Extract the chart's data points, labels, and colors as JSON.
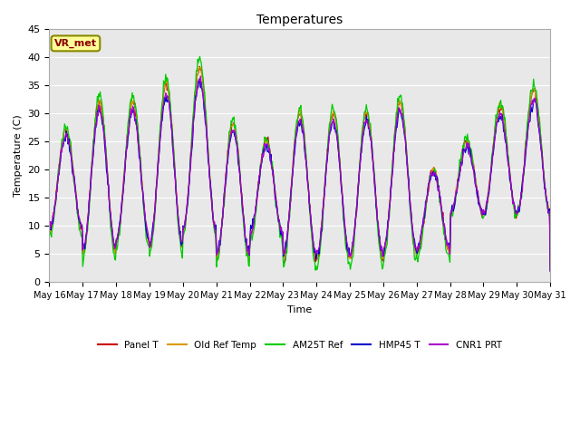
{
  "title": "Temperatures",
  "xlabel": "Time",
  "ylabel": "Temperature (C)",
  "ylim": [
    0,
    45
  ],
  "background_color": "#ffffff",
  "plot_bg_color": "#e8e8e8",
  "legend_labels": [
    "Panel T",
    "Old Ref Temp",
    "AM25T Ref",
    "HMP45 T",
    "CNR1 PRT"
  ],
  "legend_colors": [
    "#cc0000",
    "#dd9900",
    "#00cc00",
    "#0000cc",
    "#aa00cc"
  ],
  "annotation_text": "VR_met",
  "annotation_bg": "#ffff99",
  "annotation_border": "#888800",
  "x_tick_labels": [
    "May 16",
    "May 17",
    "May 18",
    "May 19",
    "May 20",
    "May 21",
    "May 22",
    "May 23",
    "May 24",
    "May 25",
    "May 26",
    "May 27",
    "May 28",
    "May 29",
    "May 30",
    "May 31"
  ],
  "num_days": 15,
  "points_per_day": 48,
  "figsize": [
    6.4,
    4.8
  ],
  "dpi": 100
}
